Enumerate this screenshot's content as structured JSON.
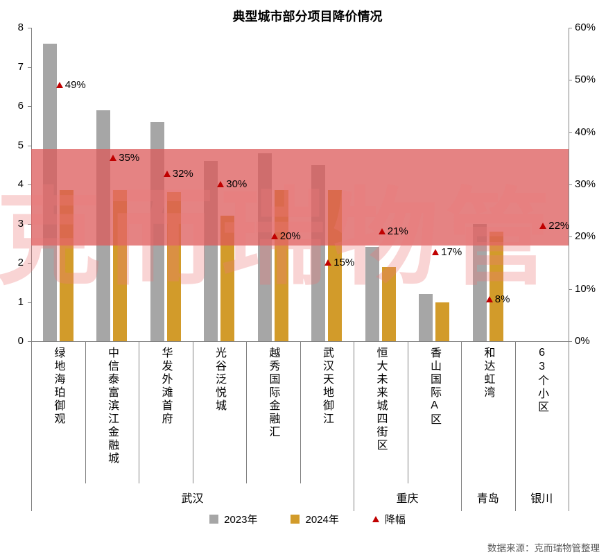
{
  "title": "典型城市部分项目降价情况",
  "source": "数据来源：克而瑞物管整理",
  "watermark": "克而瑞物管",
  "colors": {
    "bar_2023": "#a6a6a6",
    "bar_2024": "#d29b2a",
    "marker": "#c00000",
    "band": "rgba(220,90,90,0.75)",
    "watermark_text": "rgba(235,120,120,0.32)",
    "axis_line": "#808080",
    "source_text": "#595959"
  },
  "chart_data": {
    "type": "bar",
    "title": "典型城市部分项目降价情况",
    "categories": [
      "绿地海珀御观",
      "中信泰富滨江金融城",
      "华发外滩首府",
      "光谷泛悦城",
      "越秀国际金融汇",
      "武汉天地御江",
      "恒大未来城四街区",
      "香山国际A区",
      "和达虹湾",
      "63个小区"
    ],
    "city_groups": [
      {
        "label": "武汉",
        "span": 6
      },
      {
        "label": "重庆",
        "span": 2
      },
      {
        "label": "青岛",
        "span": 1
      },
      {
        "label": "银川",
        "span": 1
      }
    ],
    "series": [
      {
        "name": "2023年",
        "type": "bar",
        "axis": "left",
        "values": [
          7.6,
          5.9,
          5.6,
          4.6,
          4.8,
          4.5,
          2.4,
          1.2,
          3.0,
          null
        ]
      },
      {
        "name": "2024年",
        "type": "bar",
        "axis": "left",
        "values": [
          3.85,
          3.85,
          3.8,
          3.2,
          3.85,
          3.85,
          1.9,
          1.0,
          2.8,
          null
        ]
      },
      {
        "name": "降幅",
        "type": "scatter",
        "axis": "right",
        "values": [
          49,
          35,
          32,
          30,
          20,
          15,
          21,
          17,
          8,
          22
        ],
        "labels": [
          "49%",
          "35%",
          "32%",
          "30%",
          "20%",
          "15%",
          "21%",
          "17%",
          "8%",
          "22%"
        ]
      }
    ],
    "left_axis": {
      "min": 0,
      "max": 8,
      "tick_values": [
        0,
        1,
        2,
        3,
        4,
        5,
        6,
        7,
        8
      ]
    },
    "right_axis": {
      "min": 0,
      "max": 60,
      "tick_values": [
        0,
        10,
        20,
        30,
        40,
        50,
        60
      ],
      "tick_labels": [
        "0%",
        "10%",
        "20%",
        "30%",
        "40%",
        "50%",
        "60%"
      ]
    },
    "highlight_band": {
      "axis": "left",
      "from": 2.45,
      "to": 4.9
    },
    "grid": false,
    "legend_position": "bottom"
  }
}
